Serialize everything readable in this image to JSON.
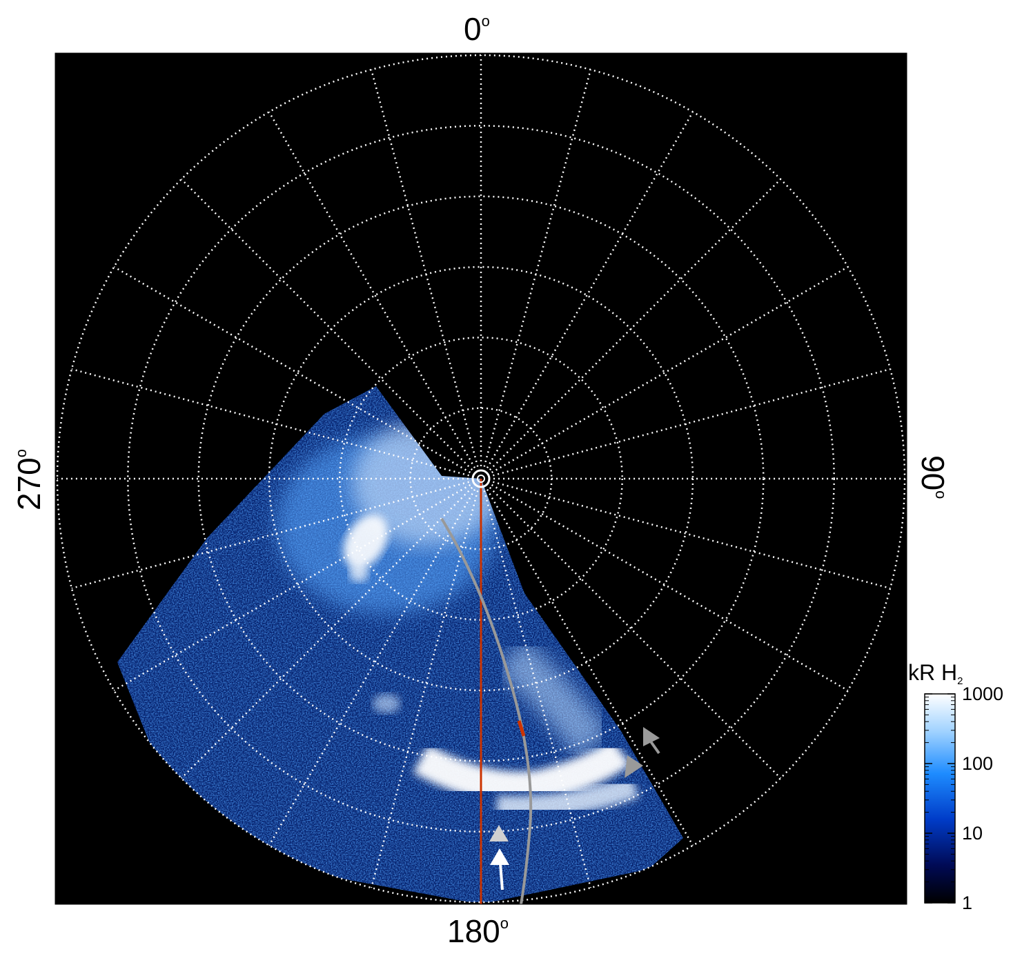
{
  "figure": {
    "labels": {
      "top": {
        "value": "0",
        "unit": "o"
      },
      "right": {
        "value": "90",
        "unit": "o"
      },
      "bottom": {
        "value": "180",
        "unit": "o"
      },
      "left": {
        "value": "270",
        "unit": "o"
      }
    },
    "grid": {
      "longitude_spacing_deg": 15,
      "latitude_ring_count": 6,
      "style": "white dotted"
    },
    "colorbar": {
      "title": "kR H",
      "title_subscript": "2",
      "scale": "log",
      "range": [
        1,
        1000
      ],
      "ticks": [
        {
          "value": 1000,
          "label": "1000"
        },
        {
          "value": 100,
          "label": "100"
        },
        {
          "value": 10,
          "label": "10"
        },
        {
          "value": 1,
          "label": "1"
        }
      ],
      "colors": [
        "#000000",
        "#000a55",
        "#003cc8",
        "#1e8cff",
        "#a0d2ff",
        "#ffffff"
      ]
    },
    "overlays": {
      "red_line_color": "#cc3300",
      "grey_curve_color": "#999999",
      "arrows": [
        {
          "name": "grey-arrow-upper",
          "color": "#9a9a9a"
        },
        {
          "name": "grey-arrow-lower",
          "color": "#9a9a9a"
        },
        {
          "name": "lightgrey-arrow",
          "color": "#d0d0d0"
        },
        {
          "name": "white-arrow",
          "color": "#ffffff"
        }
      ]
    }
  }
}
